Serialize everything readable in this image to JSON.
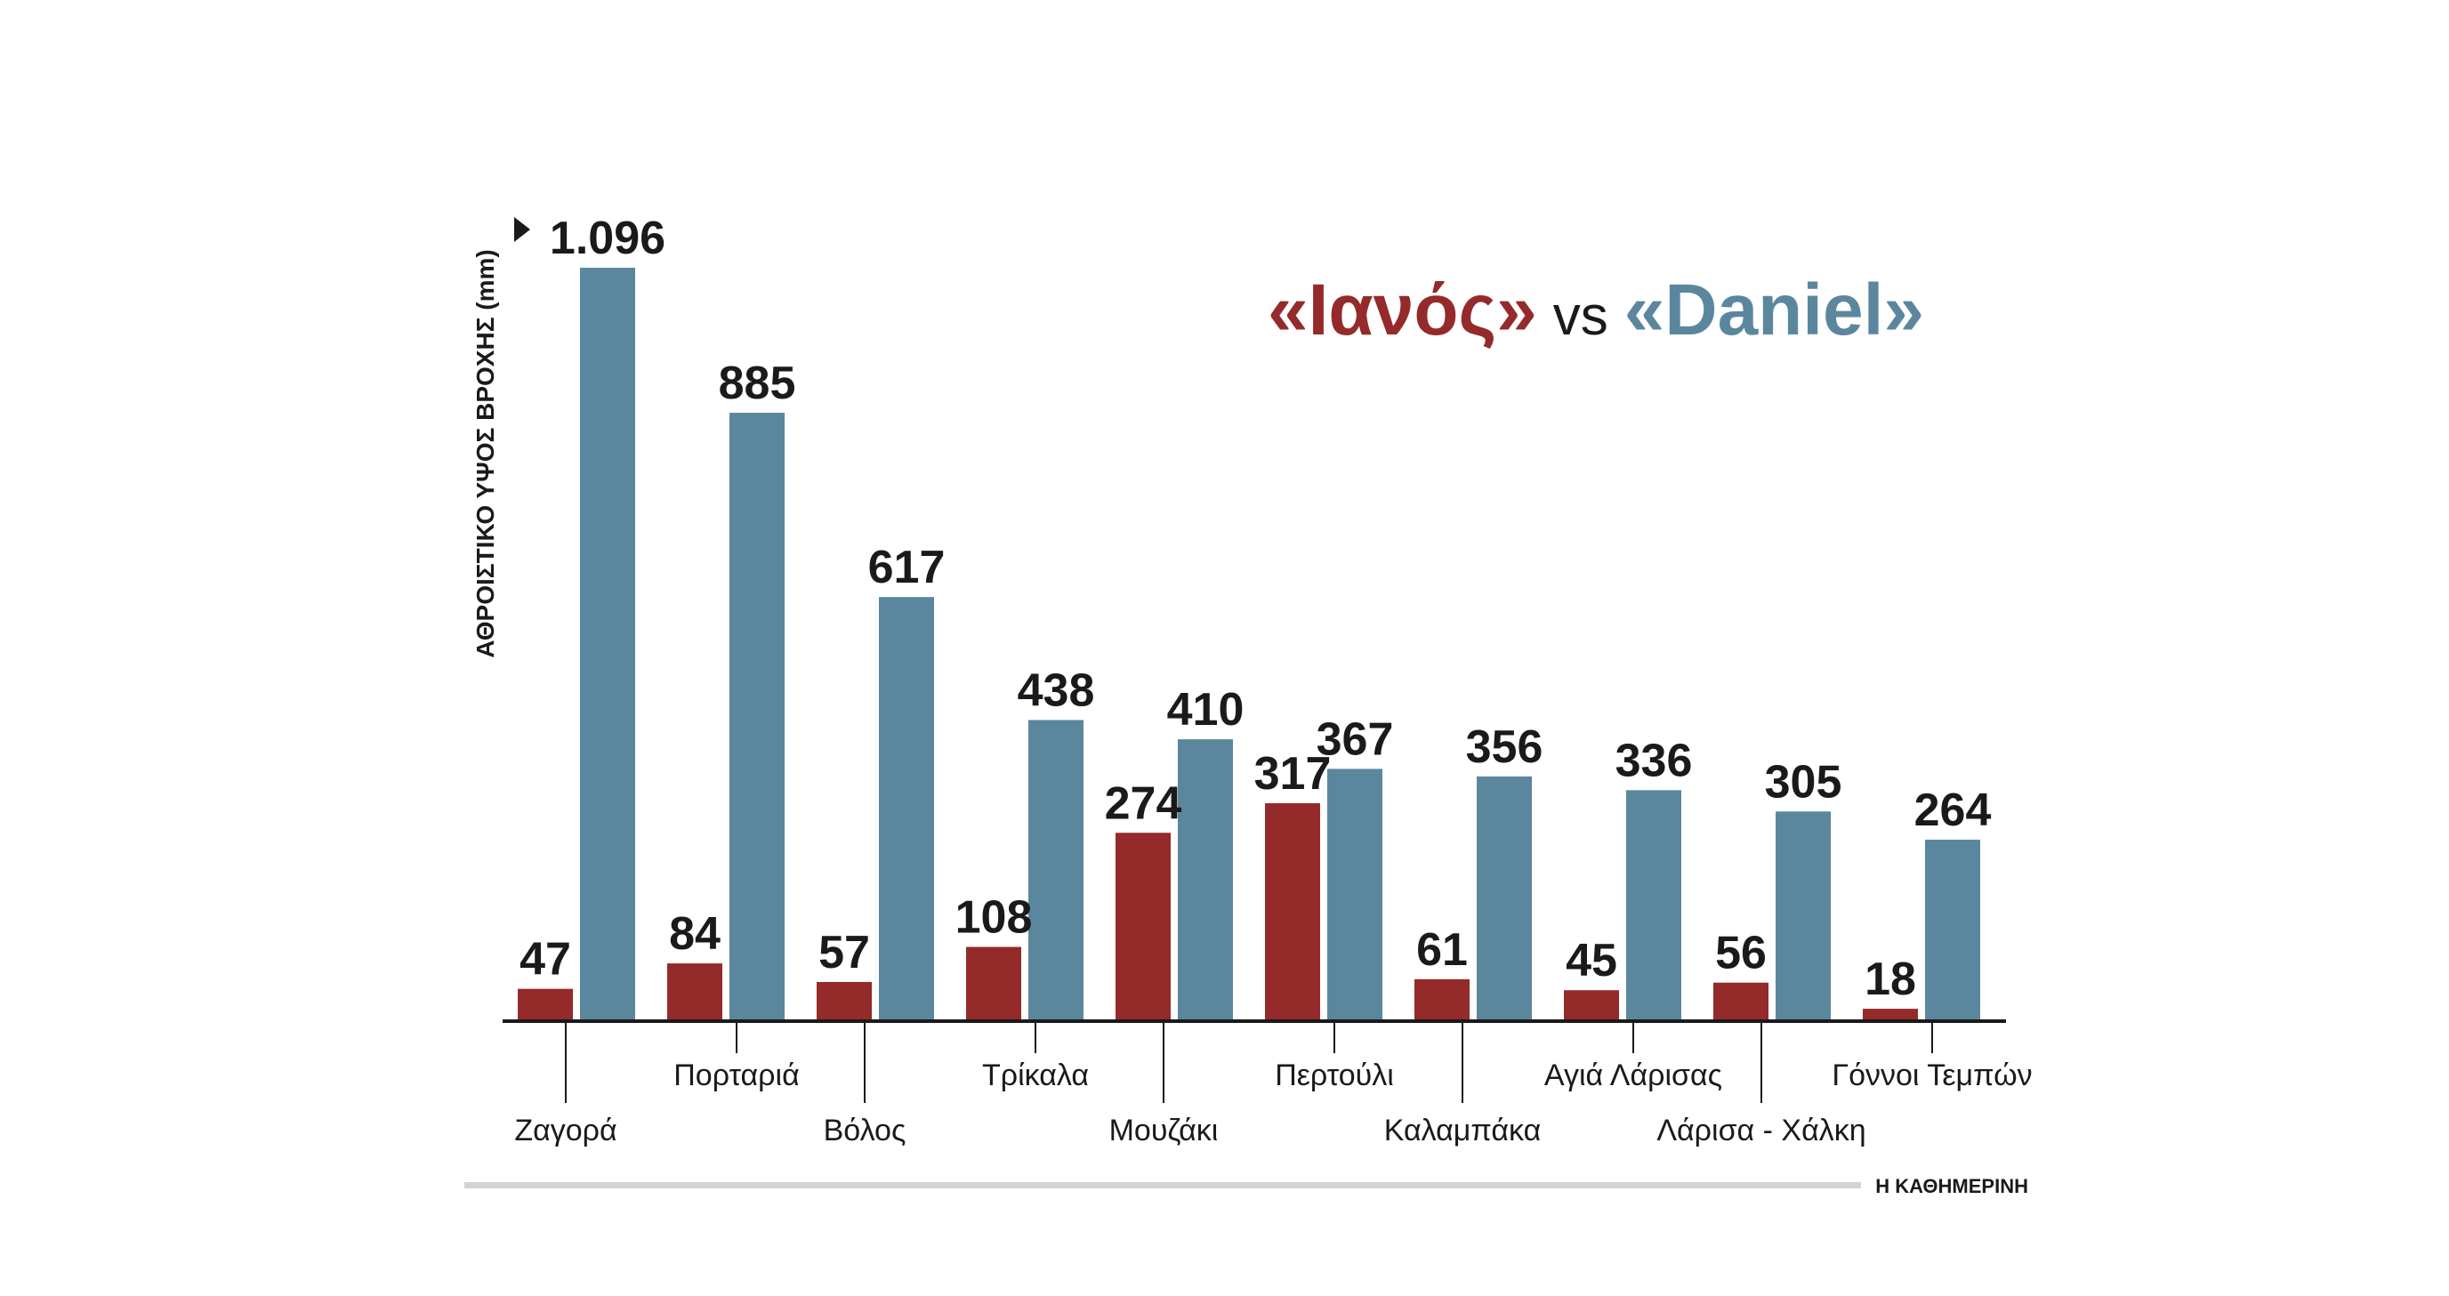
{
  "chart_data": {
    "type": "bar",
    "title": {
      "series_a": "«Ιανός»",
      "vs": "vs",
      "series_b": "«Daniel»"
    },
    "ylabel": "ΑΘΡΟΙΣΤΙΚΟ ΥΨΟΣ ΒΡΟΧΗΣ (mm)",
    "xlabel": "",
    "ylim": [
      0,
      1096
    ],
    "grid": false,
    "categories": [
      "Ζαγορά",
      "Πορταριά",
      "Βόλος",
      "Τρίκαλα",
      "Μουζάκι",
      "Περτούλι",
      "Καλαμπάκα",
      "Αγιά Λάρισας",
      "Λάρισα - Χάλκη",
      "Γόννοι Τεμπών"
    ],
    "series": [
      {
        "name": "Ιανός",
        "color": "#952a2a",
        "values": [
          47,
          84,
          57,
          108,
          274,
          317,
          61,
          45,
          56,
          18
        ],
        "labels": [
          "47",
          "84",
          "57",
          "108",
          "274",
          "317",
          "61",
          "45",
          "56",
          "18"
        ]
      },
      {
        "name": "Daniel",
        "color": "#5b879e",
        "values": [
          1096,
          885,
          617,
          438,
          410,
          367,
          356,
          336,
          305,
          264
        ],
        "labels": [
          "1.096",
          "885",
          "617",
          "438",
          "410",
          "367",
          "356",
          "336",
          "305",
          "264"
        ]
      }
    ]
  },
  "source": "Η ΚΑΘΗΜΕΡΙΝΗ"
}
